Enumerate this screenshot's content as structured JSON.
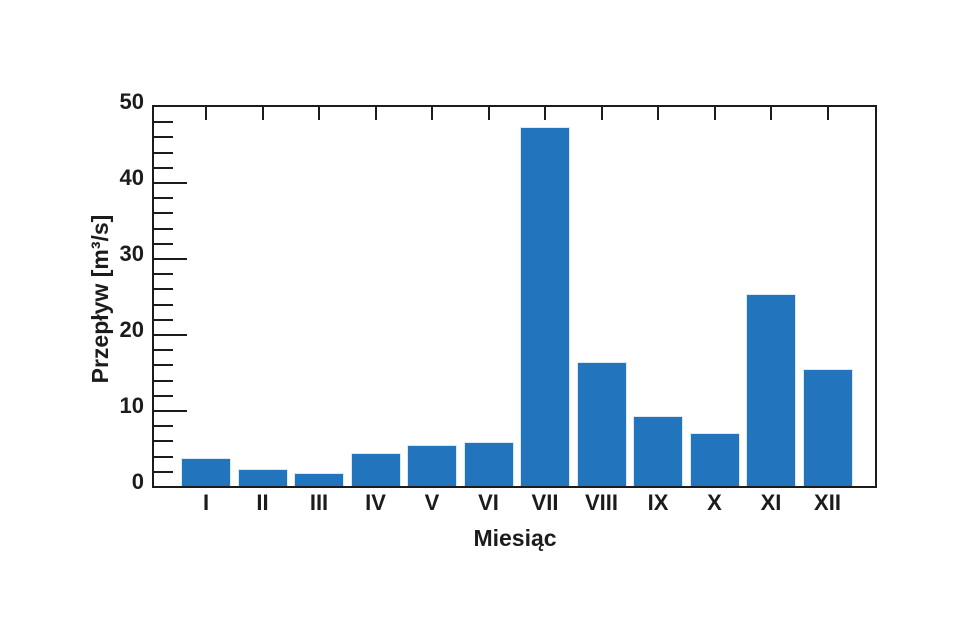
{
  "page": {
    "background_color": "#ffffff"
  },
  "chart_data": {
    "type": "bar",
    "title": "",
    "xlabel": "Miesiąc",
    "ylabel": "Przepływ [m³/s]",
    "categories": [
      "I",
      "II",
      "III",
      "IV",
      "V",
      "VI",
      "VII",
      "VIII",
      "IX",
      "X",
      "XI",
      "XII"
    ],
    "values": [
      3.8,
      2.4,
      1.8,
      4.5,
      5.5,
      5.9,
      47.4,
      16.4,
      9.4,
      7.1,
      25.4,
      15.5
    ],
    "ylim": [
      0,
      50
    ],
    "yticks_major": [
      0,
      10,
      20,
      30,
      40,
      50
    ],
    "ytick_minor_step": 2,
    "grid": false,
    "legend": null,
    "bar_color": "#2275bc",
    "bar_edge_color": "#dbe9f5",
    "axis_color": "#1c1c1c",
    "text_color": "#1c1c1c",
    "ticks_position": "left-and-top-inward"
  }
}
